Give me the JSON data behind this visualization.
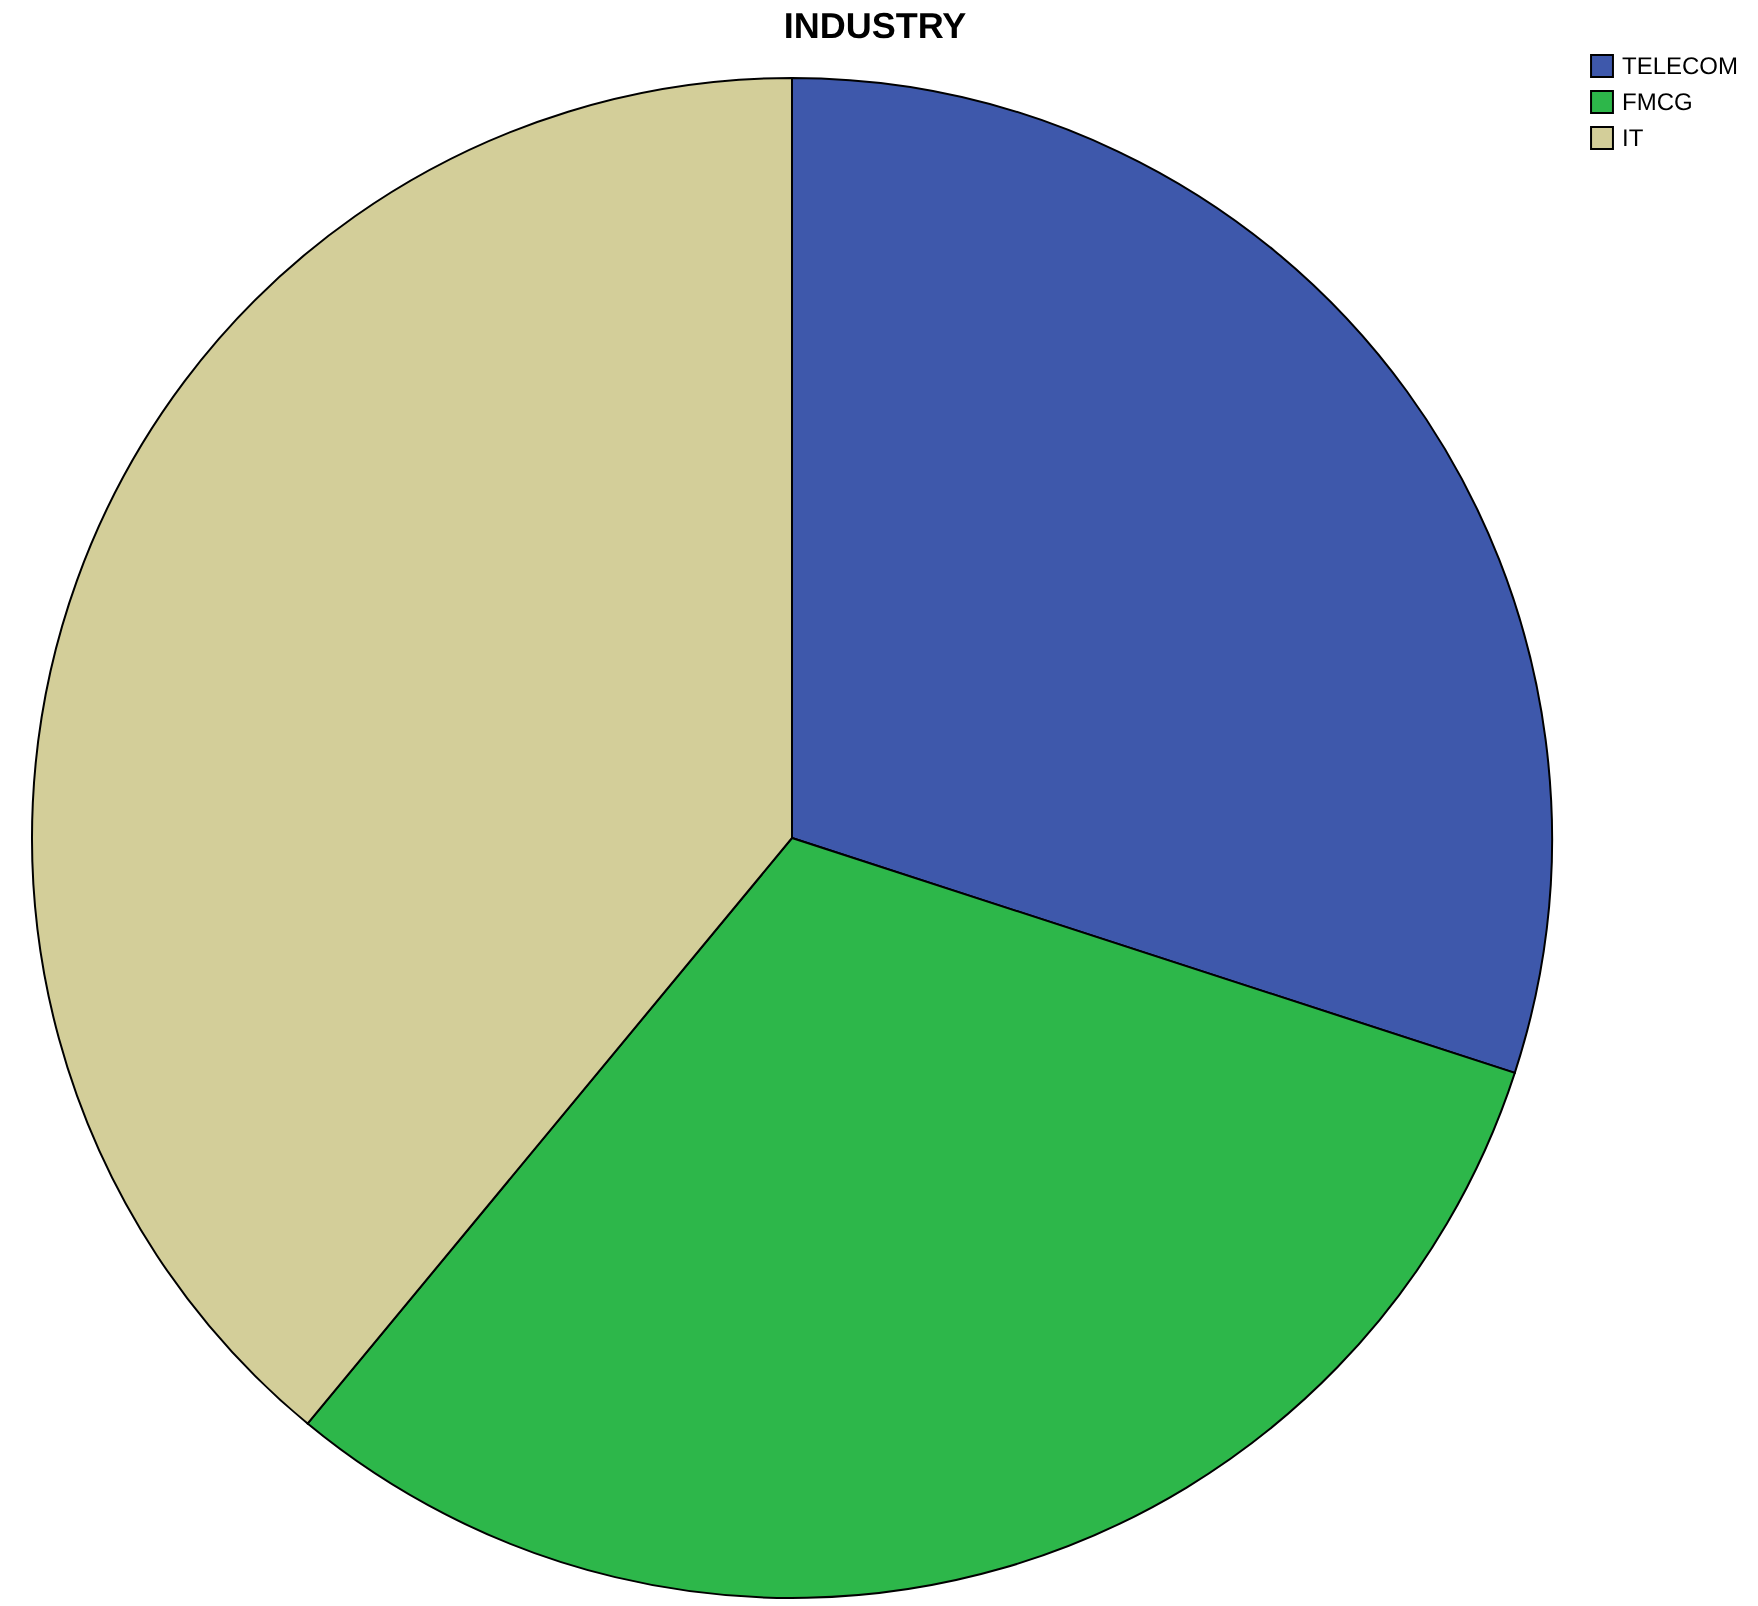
{
  "chart_data": {
    "type": "pie",
    "title": "INDUSTRY",
    "categories": [
      "TELECOM",
      "FMCG",
      "IT"
    ],
    "values": [
      30,
      31,
      39
    ],
    "colors": [
      "#3e58ab",
      "#2db74a",
      "#d3ce99"
    ],
    "legend": "top right"
  }
}
